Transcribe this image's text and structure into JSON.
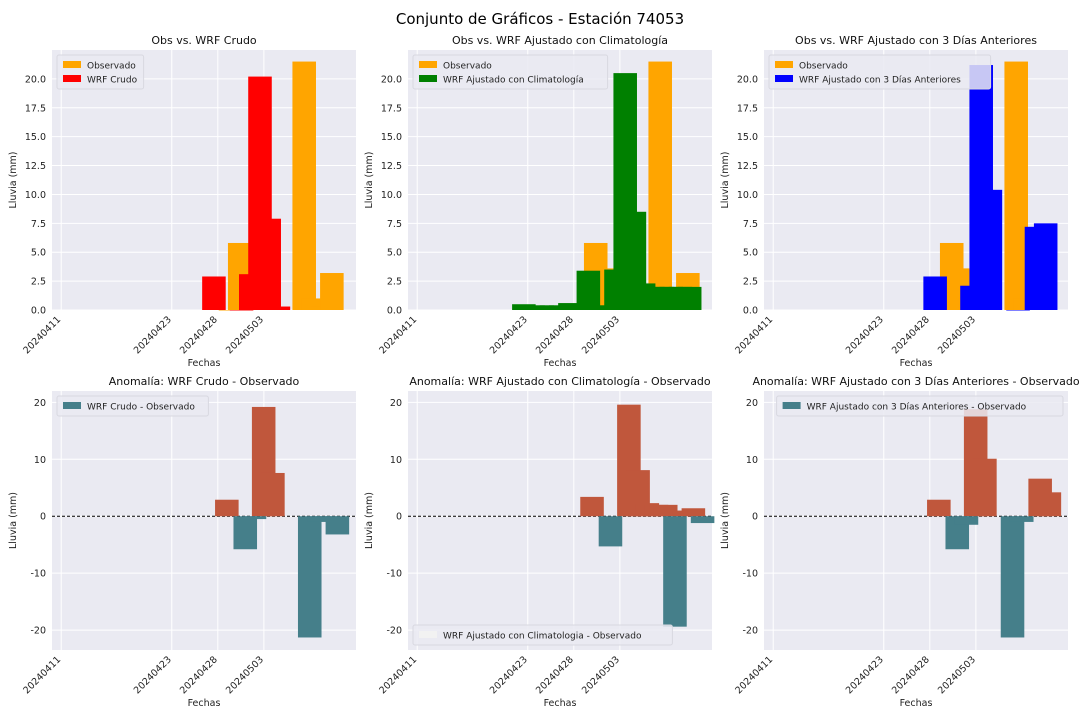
{
  "figure": {
    "title": "Conjunto de Gráficos - Estación 74053",
    "colors": {
      "background": "#eaeaf2",
      "grid": "#ffffff",
      "observado": "#ffa500",
      "wrf_crudo": "#ff0000",
      "wrf_clima": "#008000",
      "wrf_3dias": "#0000ff",
      "anomalia_pos": "#c0573c",
      "anomalia_neg": "#457f8a"
    }
  },
  "chart_data": [
    {
      "type": "bar",
      "title": "Obs vs. WRF Crudo",
      "xlabel": "Fechas",
      "ylabel": "Lluvia (mm)",
      "ylim": [
        0,
        22.5
      ],
      "yticks": [
        0.0,
        2.5,
        5.0,
        7.5,
        10.0,
        12.5,
        15.0,
        17.5,
        20.0
      ],
      "xticks": [
        "20240411",
        "20240423",
        "20240428",
        "20240503"
      ],
      "legend_position": "top-left",
      "series": [
        {
          "name": "Observado",
          "color_key": "observado",
          "points": [
            [
              18.4,
              0
            ],
            [
              19.4,
              5.8
            ],
            [
              20.4,
              3.6
            ],
            [
              21.4,
              1.0
            ],
            [
              26.4,
              21.5
            ],
            [
              27.4,
              1.0
            ],
            [
              28.4,
              0.3
            ],
            [
              29.4,
              3.2
            ]
          ]
        },
        {
          "name": "WRF Crudo",
          "color_key": "wrf_crudo",
          "points": [
            [
              16.6,
              2.9
            ],
            [
              19.6,
              0
            ],
            [
              20.6,
              3.1
            ],
            [
              21.6,
              20.2
            ],
            [
              22.6,
              7.9
            ],
            [
              23.6,
              0.3
            ]
          ]
        }
      ]
    },
    {
      "type": "bar",
      "title": "Obs vs. WRF Ajustado con Climatología",
      "xlabel": "Fechas",
      "ylabel": "Lluvia (mm)",
      "ylim": [
        0,
        22.5
      ],
      "yticks": [
        0.0,
        2.5,
        5.0,
        7.5,
        10.0,
        12.5,
        15.0,
        17.5,
        20.0
      ],
      "xticks": [
        "20240411",
        "20240423",
        "20240428",
        "20240503"
      ],
      "legend_position": "top-left",
      "series": [
        {
          "name": "Observado",
          "color_key": "observado",
          "points": [
            [
              19.4,
              5.8
            ],
            [
              20.4,
              3.6
            ],
            [
              21.4,
              1.0
            ],
            [
              26.4,
              21.5
            ],
            [
              27.4,
              1.0
            ],
            [
              28.4,
              0.3
            ],
            [
              29.4,
              3.2
            ]
          ]
        },
        {
          "name": "WRF Ajustado con Climatología",
          "color_key": "wrf_clima",
          "points": [
            [
              11.6,
              0.5
            ],
            [
              12.6,
              0.4
            ],
            [
              13.6,
              0.4
            ],
            [
              14.6,
              0.4
            ],
            [
              15.6,
              0.4
            ],
            [
              16.6,
              0.6
            ],
            [
              17.6,
              0.4
            ],
            [
              18.6,
              3.4
            ],
            [
              19.6,
              0.4
            ],
            [
              20.6,
              0.4
            ],
            [
              21.6,
              3.5
            ],
            [
              22.6,
              20.5
            ],
            [
              23.6,
              8.5
            ],
            [
              24.6,
              2.3
            ],
            [
              25.6,
              2.0
            ],
            [
              26.6,
              2.0
            ],
            [
              27.6,
              2.0
            ],
            [
              28.6,
              2.0
            ],
            [
              29.6,
              2.0
            ]
          ]
        }
      ]
    },
    {
      "type": "bar",
      "title": "Obs vs. WRF Ajustado con 3 Días Anteriores",
      "xlabel": "Fechas",
      "ylabel": "Lluvia (mm)",
      "ylim": [
        0,
        22.5
      ],
      "yticks": [
        0.0,
        2.5,
        5.0,
        7.5,
        10.0,
        12.5,
        15.0,
        17.5,
        20.0
      ],
      "xticks": [
        "20240411",
        "20240423",
        "20240428",
        "20240503"
      ],
      "legend_position": "top-left",
      "series": [
        {
          "name": "Observado",
          "color_key": "observado",
          "points": [
            [
              19.4,
              5.8
            ],
            [
              20.4,
              3.6
            ],
            [
              21.4,
              1.0
            ],
            [
              26.4,
              21.5
            ],
            [
              27.4,
              1.0
            ],
            [
              28.4,
              0.3
            ],
            [
              29.4,
              3.2
            ]
          ]
        },
        {
          "name": "WRF Ajustado con 3 Días Anteriores",
          "color_key": "wrf_3dias",
          "points": [
            [
              17.6,
              2.9
            ],
            [
              21.6,
              2.1
            ],
            [
              22.6,
              21.2
            ],
            [
              23.6,
              10.4
            ],
            [
              26.6,
              0
            ],
            [
              28.6,
              7.2
            ],
            [
              29.6,
              7.5
            ]
          ]
        }
      ]
    },
    {
      "type": "bar",
      "title": "Anomalía: WRF Crudo - Observado",
      "xlabel": "Fechas",
      "ylabel": "Lluvia (mm)",
      "ylim": [
        -23.5,
        22
      ],
      "yticks": [
        -20,
        -10,
        0,
        10,
        20
      ],
      "xticks": [
        "20240411",
        "20240423",
        "20240428",
        "20240503"
      ],
      "zero_line": true,
      "legend_position": "top-left",
      "legend": [
        {
          "name": "WRF Crudo - Observado",
          "color_key": "anomalia_neg"
        }
      ],
      "series": [
        {
          "name": "",
          "color_key": "anomalia_pos",
          "points": [
            [
              18.0,
              2.9
            ],
            [
              22.0,
              19.2
            ],
            [
              23.0,
              7.6
            ]
          ]
        },
        {
          "name": "",
          "color_key": "anomalia_neg",
          "points": [
            [
              20.0,
              -5.8
            ],
            [
              21.0,
              -0.5
            ],
            [
              27.0,
              -21.3
            ],
            [
              28.0,
              -1.0
            ],
            [
              29.0,
              -0.3
            ],
            [
              30.0,
              -3.2
            ]
          ]
        }
      ]
    },
    {
      "type": "bar",
      "title": "Anomalía: WRF Ajustado con Climatología - Observado",
      "xlabel": "Fechas",
      "ylabel": "Lluvia (mm)",
      "ylim": [
        -23.5,
        22
      ],
      "yticks": [
        -20,
        -10,
        0,
        10,
        20
      ],
      "xticks": [
        "20240411",
        "20240423",
        "20240428",
        "20240503"
      ],
      "zero_line": true,
      "legend_position": "bottom-left",
      "legend": [
        {
          "name": "WRF Ajustado con Climatologia - Observado",
          "color_key": "legend_blank"
        }
      ],
      "series": [
        {
          "name": "",
          "color_key": "anomalia_pos",
          "points": [
            [
              19.0,
              3.4
            ],
            [
              23.0,
              19.6
            ],
            [
              24.0,
              8.1
            ],
            [
              25.0,
              2.3
            ],
            [
              26.0,
              2.0
            ],
            [
              27.0,
              2.0
            ],
            [
              29.0,
              1.0
            ],
            [
              30.0,
              1.4
            ]
          ]
        },
        {
          "name": "",
          "color_key": "anomalia_neg",
          "points": [
            [
              21.0,
              -5.3
            ],
            [
              28.0,
              -19.4
            ],
            [
              31.0,
              -1.2
            ]
          ]
        }
      ]
    },
    {
      "type": "bar",
      "title": "Anomalía: WRF Ajustado con 3 Días Anteriores - Observado",
      "xlabel": "Fechas",
      "ylabel": "Lluvia (mm)",
      "ylim": [
        -23.5,
        22
      ],
      "yticks": [
        -20,
        -10,
        0,
        10,
        20
      ],
      "xticks": [
        "20240411",
        "20240423",
        "20240428",
        "20240503"
      ],
      "zero_line": true,
      "legend_position": "top-right",
      "legend": [
        {
          "name": "WRF Ajustado con 3 Días Anteriores - Observado",
          "color_key": "anomalia_neg"
        }
      ],
      "series": [
        {
          "name": "",
          "color_key": "anomalia_pos",
          "points": [
            [
              18.0,
              2.9
            ],
            [
              22.0,
              18.8
            ],
            [
              23.0,
              10.1
            ],
            [
              29.0,
              6.6
            ],
            [
              30.0,
              4.2
            ]
          ]
        },
        {
          "name": "",
          "color_key": "anomalia_neg",
          "points": [
            [
              20.0,
              -5.8
            ],
            [
              21.0,
              -1.5
            ],
            [
              26.0,
              -21.3
            ],
            [
              27.0,
              -1.0
            ]
          ]
        }
      ]
    }
  ]
}
